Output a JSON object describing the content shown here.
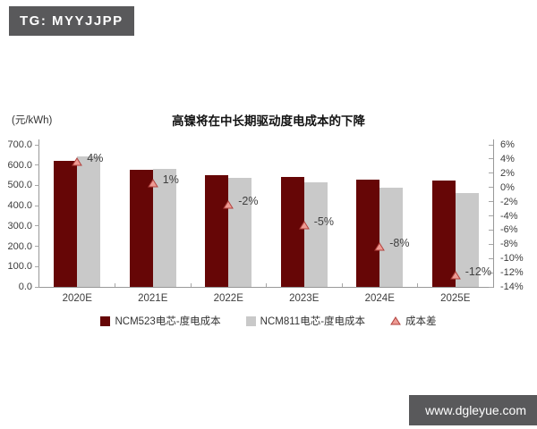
{
  "badge": {
    "text": "TG: MYYJJPP"
  },
  "watermark": {
    "text": "www.dgleyue.com"
  },
  "chart_data": {
    "type": "bar",
    "title": "高镍将在中长期驱动度电成本的下降",
    "unit_label": "(元/kWh)",
    "categories": [
      "2020E",
      "2021E",
      "2022E",
      "2023E",
      "2024E",
      "2025E"
    ],
    "series": [
      {
        "name": "NCM523电芯-度电成本",
        "type": "bar",
        "axis": "left",
        "color": "#660606",
        "values": [
          620,
          575,
          550,
          540,
          530,
          525
        ]
      },
      {
        "name": "NCM811电芯-度电成本",
        "type": "bar",
        "axis": "left",
        "color": "#C9C9C9",
        "values": [
          645,
          580,
          539,
          513,
          488,
          462
        ]
      },
      {
        "name": "成本差",
        "type": "scatter",
        "marker": "triangle",
        "axis": "right",
        "color": "#ED9B94",
        "edge_color": "#B1413D",
        "values_pct": [
          4,
          1,
          -2,
          -5,
          -8,
          -12
        ],
        "labels": [
          "4%",
          "1%",
          "-2%",
          "-5%",
          "-8%",
          "-12%"
        ]
      }
    ],
    "left_axis": {
      "min": 0,
      "max": 700,
      "step": 100,
      "tick_labels": [
        "700.0",
        "600.0",
        "500.0",
        "400.0",
        "300.0",
        "200.0",
        "100.0",
        "0.0"
      ]
    },
    "right_axis": {
      "min": -14,
      "max": 6,
      "step": 2,
      "tick_labels": [
        "6%",
        "4%",
        "2%",
        "0%",
        "-2%",
        "-4%",
        "-6%",
        "-8%",
        "-10%",
        "-12%",
        "-14%"
      ]
    },
    "grid": false,
    "legend_position": "bottom"
  }
}
